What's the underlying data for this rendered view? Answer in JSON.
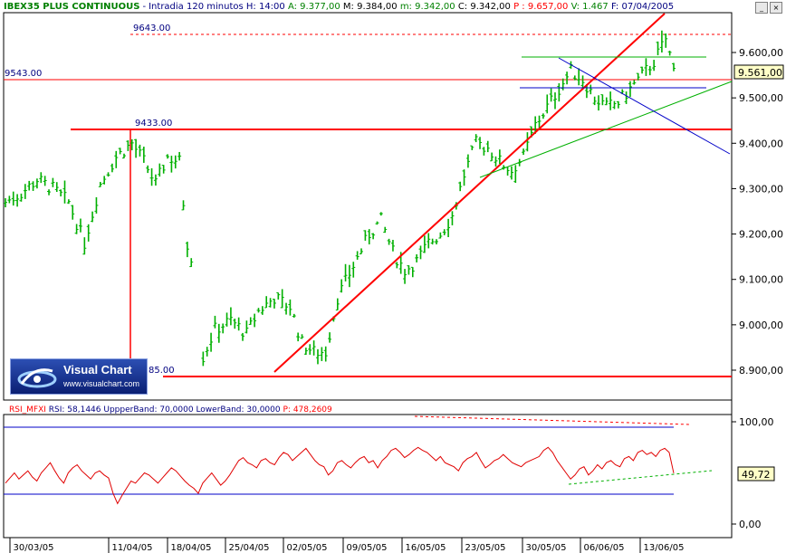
{
  "header": {
    "symbol": "IBEX35 PLUS CONTINUOUS",
    "interval": "Intradia 120 minutos",
    "h_time": "H: 14:00",
    "open": "A: 9.377,00",
    "high": "M: 9.384,00",
    "low": "m: 9.342,00",
    "close": "C: 9.342,00",
    "p": "P : 9.657,00",
    "v": "V: 1.467",
    "date": "F: 07/04/2005"
  },
  "rsi_header": {
    "name": "RSI_MFXI",
    "rsi": "RSI: 58,1446",
    "upper": "UppperBand: 70,0000",
    "lower": "LowerBand: 30,0000",
    "p": "P: 478,2609"
  },
  "logo": {
    "title": "Visual Chart",
    "url": "www.visualchart.com"
  },
  "levels": {
    "l9643": "9643.00",
    "l9543": "9543.00",
    "l9433": "9433.00",
    "l8885": "85.00"
  },
  "last_price": "9.561,00",
  "rsi_last": "49,72",
  "colors": {
    "bars": "#00b000",
    "red": "#ff0000",
    "blue": "#0000c8",
    "green": "#00b000",
    "rsi": "#e00000",
    "axisText": "#000000"
  },
  "chart_data": [
    {
      "type": "line",
      "title": "IBEX35 PLUS CONTINUOUS",
      "style": "ohlc-bars",
      "ylim": [
        8800,
        9680
      ],
      "yticks": [
        "9.600,00",
        "9.500,00",
        "9.400,00",
        "9.300,00",
        "9.200,00",
        "9.100,00",
        "9.000,00",
        "8.900,00"
      ],
      "x_ticks": [
        "30/03/05",
        "11/04/05",
        "18/04/05",
        "25/04/05",
        "02/05/05",
        "09/05/05",
        "16/05/05",
        "23/05/05",
        "30/05/05",
        "06/06/05",
        "13/06/05"
      ],
      "close_path": [
        [
          0,
          9270
        ],
        [
          4,
          9290
        ],
        [
          8,
          9320
        ],
        [
          12,
          9300
        ],
        [
          16,
          9270
        ],
        [
          20,
          9180
        ],
        [
          24,
          9310
        ],
        [
          28,
          9370
        ],
        [
          32,
          9400
        ],
        [
          35,
          9360
        ],
        [
          38,
          9310
        ],
        [
          41,
          9370
        ],
        [
          44,
          9360
        ],
        [
          46,
          9180
        ],
        [
          48,
          9120
        ],
        [
          50,
          8930
        ],
        [
          53,
          8990
        ],
        [
          57,
          9010
        ],
        [
          61,
          8980
        ],
        [
          64,
          9030
        ],
        [
          68,
          9060
        ],
        [
          72,
          9040
        ],
        [
          75,
          8960
        ],
        [
          78,
          8940
        ],
        [
          81,
          8940
        ],
        [
          84,
          9060
        ],
        [
          88,
          9130
        ],
        [
          92,
          9200
        ],
        [
          95,
          9230
        ],
        [
          98,
          9160
        ],
        [
          101,
          9120
        ],
        [
          104,
          9140
        ],
        [
          107,
          9180
        ],
        [
          110,
          9200
        ],
        [
          113,
          9240
        ],
        [
          116,
          9330
        ],
        [
          119,
          9400
        ],
        [
          122,
          9390
        ],
        [
          125,
          9360
        ],
        [
          128,
          9340
        ],
        [
          131,
          9370
        ],
        [
          134,
          9440
        ],
        [
          137,
          9480
        ],
        [
          140,
          9520
        ],
        [
          143,
          9560
        ],
        [
          146,
          9540
        ],
        [
          149,
          9500
        ],
        [
          152,
          9480
        ],
        [
          155,
          9490
        ],
        [
          158,
          9520
        ],
        [
          161,
          9550
        ],
        [
          164,
          9580
        ],
        [
          167,
          9630
        ],
        [
          169,
          9561
        ]
      ],
      "n_bars": 170,
      "annotations": [
        {
          "label": "9643.00",
          "value": 9643
        },
        {
          "label": "9543.00",
          "value": 9543
        },
        {
          "label": "9433.00",
          "value": 9433
        },
        {
          "label": "85.00",
          "value": 8885
        }
      ],
      "last_value_label": "9.561,00"
    },
    {
      "type": "line",
      "title": "RSI_MFXI",
      "ylim": [
        0,
        100
      ],
      "yticks": [
        "100,00",
        "0,00"
      ],
      "bands": [
        70,
        30
      ],
      "last_value_label": "49,72",
      "values": [
        40,
        45,
        50,
        44,
        48,
        52,
        46,
        42,
        50,
        55,
        60,
        52,
        45,
        40,
        50,
        55,
        58,
        52,
        48,
        44,
        50,
        52,
        48,
        45,
        30,
        20,
        28,
        35,
        42,
        40,
        45,
        50,
        48,
        44,
        40,
        45,
        50,
        55,
        52,
        47,
        42,
        38,
        35,
        30,
        40,
        45,
        50,
        44,
        38,
        42,
        48,
        55,
        62,
        65,
        60,
        58,
        55,
        62,
        64,
        60,
        58,
        65,
        70,
        68,
        62,
        66,
        70,
        74,
        68,
        62,
        58,
        56,
        48,
        52,
        60,
        62,
        58,
        55,
        60,
        64,
        66,
        60,
        62,
        55,
        62,
        66,
        72,
        74,
        70,
        65,
        68,
        72,
        75,
        72,
        70,
        66,
        62,
        66,
        60,
        58,
        56,
        52,
        60,
        64,
        66,
        70,
        62,
        55,
        58,
        62,
        64,
        68,
        64,
        60,
        58,
        56,
        60,
        62,
        64,
        66,
        72,
        75,
        70,
        62,
        56,
        50,
        44,
        48,
        54,
        56,
        48,
        52,
        58,
        54,
        60,
        62,
        58,
        56,
        64,
        66,
        62,
        70,
        72,
        68,
        70,
        66,
        72,
        74,
        70,
        49.72
      ]
    }
  ]
}
